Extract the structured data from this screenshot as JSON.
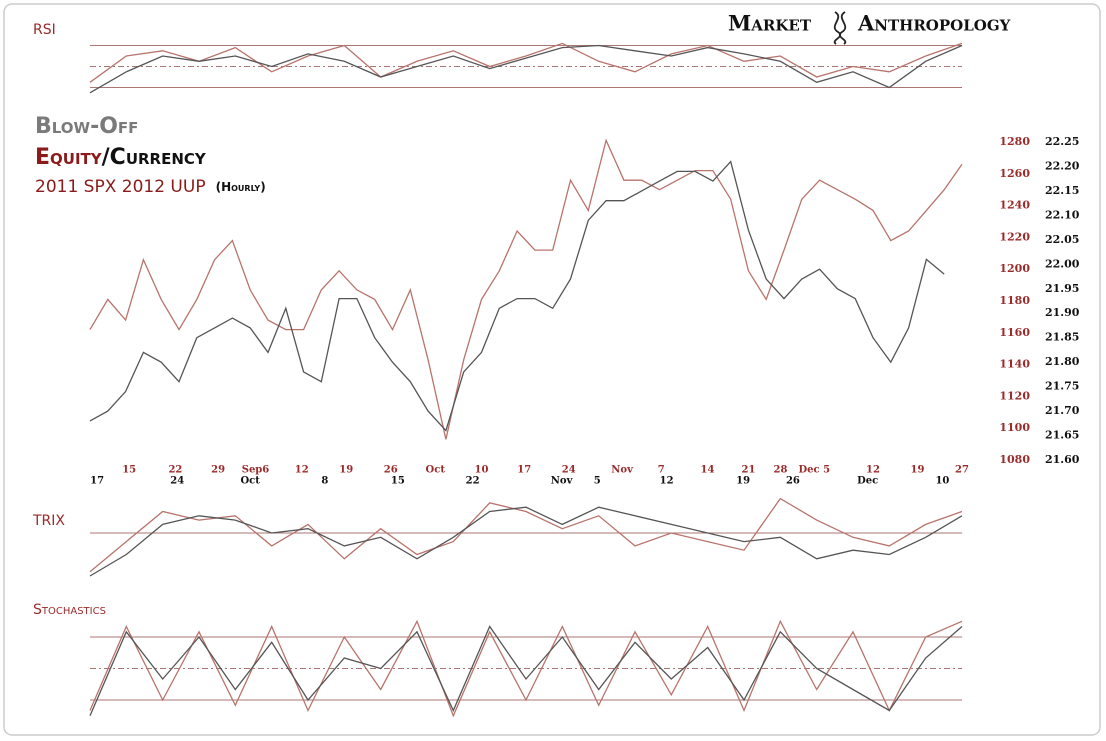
{
  "header": {
    "title": "Blow-Off",
    "subtitle": [
      "Equity",
      "/Currency"
    ],
    "note": "2011 SPX 2012 UUP",
    "interval": "(Hourly)",
    "brand": [
      "Market",
      "Anthropology"
    ]
  },
  "chart_data": [
    {
      "type": "line",
      "xlim": [
        0,
        49
      ],
      "series": [
        {
          "color": "#b8736c",
          "values": [
            1162,
            1181,
            1168,
            1206,
            1181,
            1162,
            1181,
            1206,
            1218,
            1187,
            1168,
            1162,
            1162,
            1187,
            1199,
            1187,
            1181,
            1162,
            1187,
            1143,
            1093,
            1143,
            1181,
            1199,
            1224,
            1212,
            1212,
            1256,
            1237,
            1281,
            1256,
            1256,
            1250,
            1256,
            1262,
            1262,
            1244,
            1199,
            1181,
            1212,
            1244,
            1256,
            1250,
            1244,
            1237,
            1218,
            1224,
            1237,
            1250,
            1266
          ]
        },
        {
          "color": "#555555",
          "axis": "y2",
          "values": [
            21.68,
            21.7,
            21.74,
            21.82,
            21.8,
            21.76,
            21.85,
            21.87,
            21.89,
            21.87,
            21.82,
            21.91,
            21.78,
            21.76,
            21.93,
            21.93,
            21.85,
            21.8,
            21.76,
            21.7,
            21.66,
            21.78,
            21.82,
            21.91,
            21.93,
            21.93,
            21.91,
            21.97,
            22.09,
            22.13,
            22.13,
            22.15,
            22.17,
            22.19,
            22.19,
            22.17,
            22.21,
            22.07,
            21.97,
            21.93,
            21.97,
            21.99,
            21.95,
            21.93,
            21.85,
            21.8,
            21.87,
            22.01,
            21.98,
            null
          ]
        }
      ],
      "ylim": [
        1080,
        1280
      ],
      "yticks": [
        1080,
        1100,
        1120,
        1140,
        1160,
        1180,
        1200,
        1220,
        1240,
        1260,
        1280
      ],
      "y2lim": [
        21.6,
        22.25
      ],
      "y2ticks": [
        {
          "value": 21.6,
          "label": "21.60"
        },
        {
          "value": 21.65,
          "label": "21.65"
        },
        {
          "value": 21.7,
          "label": "21.70"
        },
        {
          "value": 21.75,
          "label": "21.75"
        },
        {
          "value": 21.8,
          "label": "21.80"
        },
        {
          "value": 21.85,
          "label": "21.85"
        },
        {
          "value": 21.9,
          "label": "21.90"
        },
        {
          "value": 21.95,
          "label": "21.95"
        },
        {
          "value": 22.0,
          "label": "22.00"
        },
        {
          "value": 22.05,
          "label": "22.05"
        },
        {
          "value": 22.1,
          "label": "22.10"
        },
        {
          "value": 22.15,
          "label": "22.15"
        },
        {
          "value": 22.2,
          "label": "22.20"
        },
        {
          "value": 22.25,
          "label": "22.25"
        }
      ],
      "xticks": [
        {
          "value": 2.2,
          "label": "15"
        },
        {
          "value": 4.8,
          "label": "22"
        },
        {
          "value": 7.2,
          "label": "29"
        },
        {
          "value": 9.3,
          "label": "Sep6"
        },
        {
          "value": 11.9,
          "label": "12"
        },
        {
          "value": 14.4,
          "label": "19"
        },
        {
          "value": 16.9,
          "label": "26"
        },
        {
          "value": 19.4,
          "label": "Oct"
        },
        {
          "value": 22.0,
          "label": "10"
        },
        {
          "value": 24.4,
          "label": "17"
        },
        {
          "value": 26.9,
          "label": "24"
        },
        {
          "value": 29.9,
          "label": "Nov"
        },
        {
          "value": 32.1,
          "label": "7"
        },
        {
          "value": 34.7,
          "label": "14"
        },
        {
          "value": 37.0,
          "label": "21"
        },
        {
          "value": 38.8,
          "label": "28"
        },
        {
          "value": 40.7,
          "label": "Dec 5"
        },
        {
          "value": 44.0,
          "label": "12"
        },
        {
          "value": 46.5,
          "label": "19"
        },
        {
          "value": 49,
          "label": "27"
        }
      ],
      "x2ticks": [
        {
          "value": 0.4,
          "label": "17"
        },
        {
          "value": 4.9,
          "label": "24"
        },
        {
          "value": 9.0,
          "label": "Oct"
        },
        {
          "value": 13.2,
          "label": "8"
        },
        {
          "value": 17.3,
          "label": "15"
        },
        {
          "value": 21.5,
          "label": "22"
        },
        {
          "value": 26.5,
          "label": "Nov"
        },
        {
          "value": 28.5,
          "label": "5"
        },
        {
          "value": 32.4,
          "label": "12"
        },
        {
          "value": 36.7,
          "label": "19"
        },
        {
          "value": 39.5,
          "label": "26"
        },
        {
          "value": 43.7,
          "label": "Dec"
        },
        {
          "value": 47.9,
          "label": "10"
        }
      ]
    },
    {
      "type": "line",
      "title": "RSI",
      "ylim": [
        20,
        80
      ],
      "hlines": [
        70,
        50,
        30
      ],
      "series": [
        {
          "color": "#b8736c",
          "values": [
            35,
            60,
            65,
            55,
            68,
            45,
            60,
            70,
            40,
            55,
            65,
            50,
            60,
            72,
            55,
            45,
            62,
            70,
            55,
            60,
            40,
            50,
            45,
            60,
            72
          ]
        },
        {
          "color": "#555555",
          "values": [
            25,
            45,
            60,
            55,
            60,
            50,
            62,
            55,
            40,
            50,
            60,
            48,
            58,
            68,
            70,
            65,
            60,
            68,
            62,
            55,
            35,
            45,
            30,
            55,
            70
          ]
        }
      ]
    },
    {
      "type": "line",
      "title": "TRIX",
      "ylim": [
        -1,
        1
      ],
      "hlines": [
        0
      ],
      "series": [
        {
          "color": "#b8736c",
          "values": [
            -0.9,
            -0.2,
            0.5,
            0.3,
            0.4,
            -0.3,
            0.2,
            -0.6,
            0.1,
            -0.5,
            -0.2,
            0.7,
            0.5,
            0.1,
            0.4,
            -0.3,
            0.0,
            -0.2,
            -0.4,
            0.8,
            0.3,
            -0.1,
            -0.3,
            0.2,
            0.5
          ]
        },
        {
          "color": "#555555",
          "values": [
            -1.0,
            -0.5,
            0.2,
            0.4,
            0.3,
            0.0,
            0.1,
            -0.3,
            -0.1,
            -0.6,
            -0.1,
            0.5,
            0.6,
            0.2,
            0.6,
            0.4,
            0.2,
            0.0,
            -0.2,
            -0.1,
            -0.6,
            -0.4,
            -0.5,
            -0.1,
            0.4
          ]
        }
      ]
    },
    {
      "type": "line",
      "title": "Stochastics",
      "ylim": [
        0,
        100
      ],
      "hlines": [
        80,
        50,
        20
      ],
      "series": [
        {
          "color": "#b8736c",
          "values": [
            10,
            90,
            20,
            85,
            15,
            90,
            10,
            80,
            30,
            95,
            5,
            85,
            20,
            90,
            15,
            85,
            25,
            90,
            10,
            95,
            30,
            85,
            10,
            80,
            95
          ]
        },
        {
          "color": "#555555",
          "values": [
            5,
            85,
            40,
            80,
            30,
            75,
            20,
            60,
            50,
            85,
            10,
            90,
            40,
            80,
            30,
            75,
            40,
            70,
            20,
            85,
            50,
            30,
            10,
            60,
            90
          ]
        }
      ]
    }
  ]
}
